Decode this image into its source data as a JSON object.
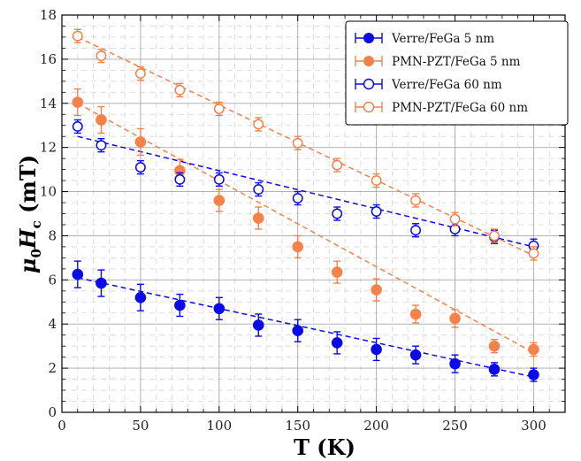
{
  "chart_data": {
    "type": "scatter",
    "xlabel": "T (K)",
    "ylabel_main": "μ",
    "ylabel_sub": "0",
    "ylabel_var": "H",
    "ylabel_var_sub": "c",
    "ylabel_unit": " (mT)",
    "xlim": [
      0,
      320
    ],
    "ylim": [
      0,
      18
    ],
    "xticks": [
      0,
      50,
      100,
      150,
      200,
      250,
      300
    ],
    "yticks": [
      0,
      2,
      4,
      6,
      8,
      10,
      12,
      14,
      16,
      18
    ],
    "grid": true,
    "legend_position": "top-right",
    "series": [
      {
        "name": "Verre/FeGa 5 nm",
        "color": "#0a0ae6",
        "marker": "filled-circle",
        "x": [
          10,
          25,
          50,
          75,
          100,
          125,
          150,
          175,
          200,
          225,
          250,
          275,
          300
        ],
        "y": [
          6.25,
          5.85,
          5.2,
          4.85,
          4.7,
          3.95,
          3.7,
          3.15,
          2.85,
          2.6,
          2.2,
          1.95,
          1.7
        ],
        "err": [
          0.6,
          0.6,
          0.6,
          0.5,
          0.5,
          0.5,
          0.5,
          0.5,
          0.5,
          0.4,
          0.4,
          0.3,
          0.3
        ],
        "fit": [
          [
            10,
            6.1
          ],
          [
            300,
            1.6
          ]
        ]
      },
      {
        "name": "PMN-PZT/FeGa 5 nm",
        "color": "#f5824a",
        "marker": "filled-circle",
        "x": [
          10,
          25,
          50,
          75,
          100,
          125,
          150,
          175,
          200,
          225,
          250,
          275,
          300
        ],
        "y": [
          14.05,
          13.25,
          12.25,
          10.95,
          9.6,
          8.8,
          7.5,
          6.35,
          5.55,
          4.45,
          4.25,
          3.0,
          2.85
        ],
        "err": [
          0.6,
          0.6,
          0.6,
          0.5,
          0.5,
          0.5,
          0.5,
          0.5,
          0.5,
          0.4,
          0.4,
          0.3,
          0.3
        ],
        "fit": [
          [
            10,
            14.0
          ],
          [
            300,
            2.7
          ]
        ]
      },
      {
        "name": "Verre/FeGa 60 nm",
        "color": "#0a0ae6",
        "marker": "open-circle",
        "x": [
          10,
          25,
          50,
          75,
          100,
          125,
          150,
          175,
          200,
          225,
          250,
          275,
          300
        ],
        "y": [
          12.95,
          12.1,
          11.1,
          10.55,
          10.55,
          10.1,
          9.7,
          9.0,
          9.1,
          8.25,
          8.3,
          7.95,
          7.55
        ],
        "err": [
          0.3,
          0.3,
          0.3,
          0.3,
          0.3,
          0.3,
          0.3,
          0.3,
          0.3,
          0.3,
          0.3,
          0.3,
          0.3
        ],
        "fit": [
          [
            10,
            12.5
          ],
          [
            300,
            7.5
          ]
        ]
      },
      {
        "name": "PMN-PZT/FeGa 60 nm",
        "color": "#f5824a",
        "marker": "open-circle",
        "x": [
          10,
          25,
          50,
          75,
          100,
          125,
          150,
          175,
          200,
          225,
          250,
          275,
          300
        ],
        "y": [
          17.05,
          16.15,
          15.35,
          14.6,
          13.75,
          13.05,
          12.2,
          11.2,
          10.5,
          9.6,
          8.75,
          8.0,
          7.2
        ],
        "err": [
          0.3,
          0.3,
          0.3,
          0.3,
          0.3,
          0.3,
          0.3,
          0.3,
          0.3,
          0.3,
          0.3,
          0.3,
          0.3
        ],
        "fit": [
          [
            10,
            17.0
          ],
          [
            300,
            7.1
          ]
        ]
      }
    ]
  }
}
